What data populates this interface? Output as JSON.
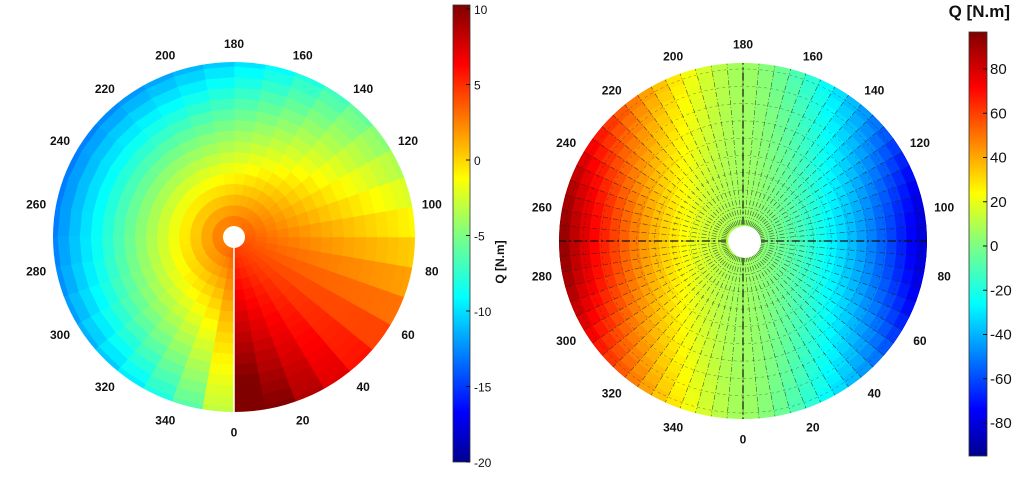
{
  "chart_data": [
    {
      "type": "heatmap",
      "subtype": "polar",
      "angle_ticks": [
        "0",
        "20",
        "40",
        "60",
        "80",
        "100",
        "120",
        "140",
        "160",
        "180",
        "200",
        "220",
        "240",
        "260",
        "280",
        "300",
        "320",
        "340"
      ],
      "colorbar": {
        "label": "Q [N.m]",
        "label_position": "vertical-right",
        "ticks": [
          "10",
          "5",
          "0",
          "-5",
          "-10",
          "-15",
          "-20"
        ],
        "range": [
          -20,
          10
        ],
        "colormap": "jet"
      },
      "grid": false
    },
    {
      "type": "heatmap",
      "subtype": "polar",
      "angle_ticks": [
        "0",
        "20",
        "40",
        "60",
        "80",
        "100",
        "120",
        "140",
        "160",
        "180",
        "200",
        "220",
        "240",
        "260",
        "280",
        "300",
        "320",
        "340"
      ],
      "colorbar": {
        "label": "Q [N.m]",
        "label_position": "top",
        "ticks": [
          "80",
          "60",
          "40",
          "20",
          "0",
          "-20",
          "-40",
          "-60",
          "-80"
        ],
        "range": [
          -95,
          95
        ],
        "colormap": "jet"
      },
      "grid": true
    }
  ]
}
